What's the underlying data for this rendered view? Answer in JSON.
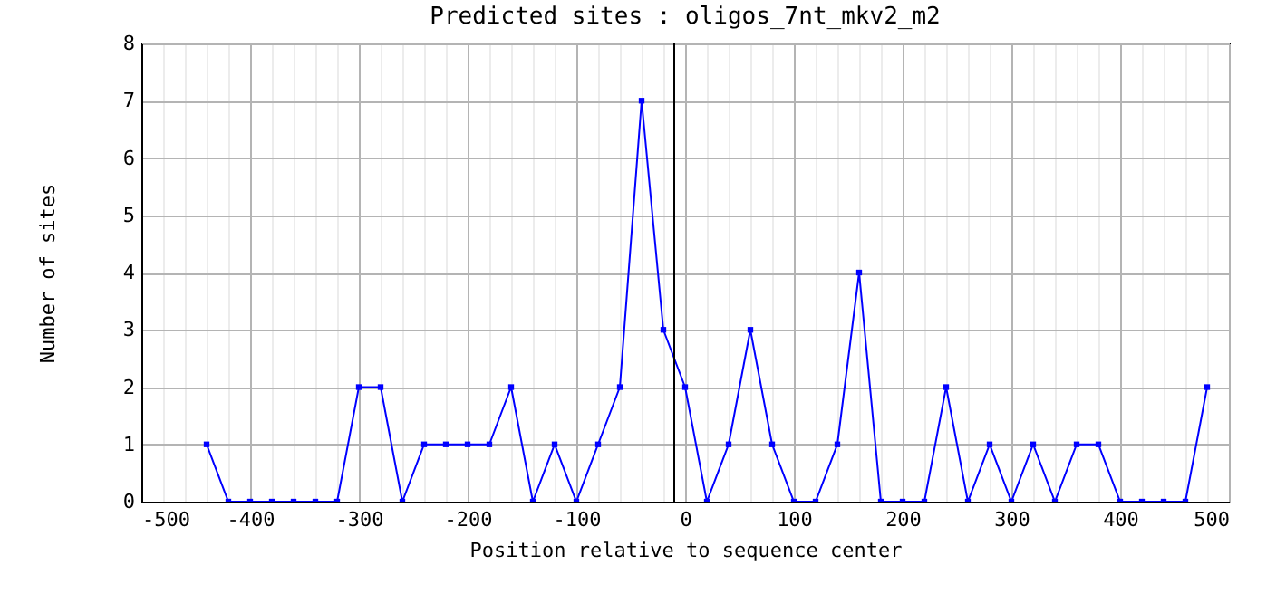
{
  "chart_data": {
    "type": "line",
    "title": "Predicted sites : oligos_7nt_mkv2_m2",
    "xlabel": "Position relative to sequence center",
    "ylabel": "Number of sites",
    "x": [
      -440,
      -420,
      -400,
      -380,
      -360,
      -340,
      -320,
      -300,
      -280,
      -260,
      -240,
      -220,
      -200,
      -180,
      -160,
      -140,
      -120,
      -100,
      -80,
      -60,
      -40,
      -20,
      0,
      20,
      40,
      60,
      80,
      100,
      120,
      140,
      160,
      180,
      200,
      220,
      240,
      260,
      280,
      300,
      320,
      340,
      360,
      380,
      400,
      420,
      440,
      460,
      480
    ],
    "series": [
      {
        "color": "#0000ff",
        "values": [
          1,
          0,
          0,
          0,
          0,
          0,
          0,
          2,
          2,
          0,
          1,
          1,
          1,
          1,
          2,
          0,
          1,
          0,
          1,
          2,
          7,
          3,
          2,
          0,
          1,
          3,
          1,
          0,
          0,
          1,
          4,
          0,
          0,
          0,
          2,
          0,
          1,
          0,
          1,
          0,
          1,
          1,
          0,
          0,
          0,
          0,
          2
        ]
      }
    ],
    "xlim": [
      -500,
      500
    ],
    "xticks": [
      -500,
      {
        "value": -480,
        "label": null
      },
      {
        "value": -460,
        "label": null
      },
      {
        "value": -440,
        "label": null
      },
      {
        "value": -420,
        "label": null
      },
      -400,
      {
        "value": -380,
        "label": null
      },
      {
        "value": -360,
        "label": null
      },
      {
        "value": -340,
        "label": null
      },
      {
        "value": -320,
        "label": null
      },
      -300,
      {
        "value": -280,
        "label": null
      },
      {
        "value": -260,
        "label": null
      },
      {
        "value": -240,
        "label": null
      },
      {
        "value": -220,
        "label": null
      },
      -200,
      {
        "value": -180,
        "label": null
      },
      {
        "value": -160,
        "label": null
      },
      {
        "value": -140,
        "label": null
      },
      {
        "value": -120,
        "label": null
      },
      -100,
      {
        "value": -80,
        "label": null
      },
      {
        "value": -60,
        "label": null
      },
      {
        "value": -40,
        "label": null
      },
      {
        "value": -20,
        "label": null
      },
      0,
      {
        "value": 20,
        "label": null
      },
      {
        "value": 40,
        "label": null
      },
      {
        "value": 60,
        "label": null
      },
      {
        "value": 80,
        "label": null
      },
      100,
      {
        "value": 120,
        "label": null
      },
      {
        "value": 140,
        "label": null
      },
      {
        "value": 160,
        "label": null
      },
      {
        "value": 180,
        "label": null
      },
      200,
      {
        "value": 220,
        "label": null
      },
      {
        "value": 240,
        "label": null
      },
      {
        "value": 260,
        "label": null
      },
      {
        "value": 280,
        "label": null
      },
      300,
      {
        "value": 320,
        "label": null
      },
      {
        "value": 340,
        "label": null
      },
      {
        "value": 360,
        "label": null
      },
      {
        "value": 380,
        "label": null
      },
      400,
      {
        "value": 420,
        "label": null
      },
      {
        "value": 440,
        "label": null
      },
      {
        "value": 460,
        "label": null
      },
      {
        "value": 480,
        "label": null
      },
      500
    ],
    "ylim": [
      0,
      8
    ],
    "yticks": [
      0,
      1,
      2,
      3,
      4,
      5,
      6,
      7,
      8
    ],
    "ref_lines": [
      {
        "axis": "x",
        "value": -10,
        "color": "#000000"
      }
    ],
    "grid": true,
    "marker": "square",
    "line_style": "solid"
  }
}
